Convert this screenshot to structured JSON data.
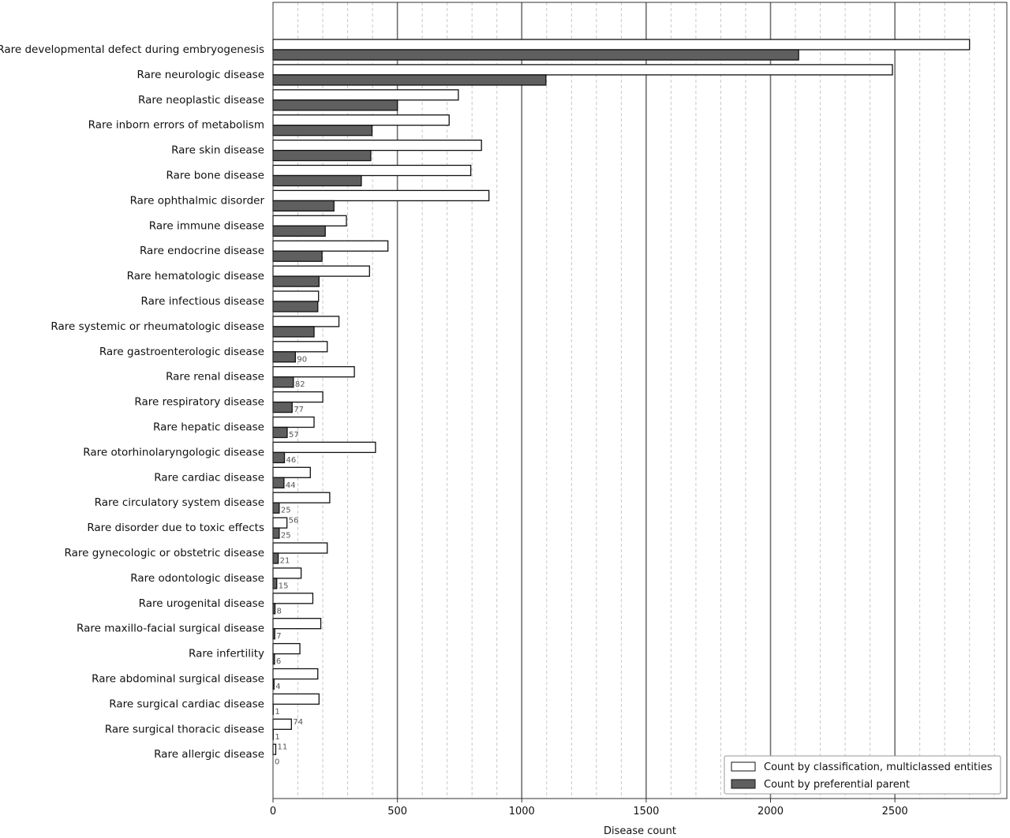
{
  "chart_data": {
    "type": "bar",
    "orientation": "horizontal",
    "categories": [
      "Rare developmental defect during embryogenesis",
      "Rare neurologic disease",
      "Rare neoplastic disease",
      "Rare inborn errors of metabolism",
      "Rare skin disease",
      "Rare bone disease",
      "Rare ophthalmic disorder",
      "Rare immune disease",
      "Rare endocrine disease",
      "Rare hematologic disease",
      "Rare infectious disease",
      "Rare systemic or rheumatologic disease",
      "Rare gastroenterologic disease",
      "Rare renal disease",
      "Rare respiratory disease",
      "Rare hepatic disease",
      "Rare otorhinolaryngologic disease",
      "Rare cardiac disease",
      "Rare circulatory system disease",
      "Rare disorder due to toxic effects",
      "Rare gynecologic or obstetric disease",
      "Rare odontologic disease",
      "Rare urogenital disease",
      "Rare maxillo-facial surgical disease",
      "Rare infertility",
      "Rare abdominal surgical disease",
      "Rare surgical cardiac disease",
      "Rare surgical thoracic disease",
      "Rare allergic disease"
    ],
    "series": [
      {
        "name": "Count by classification, multiclassed entities",
        "color": "#ffffff",
        "values": [
          2800,
          2490,
          745,
          708,
          838,
          795,
          868,
          295,
          462,
          388,
          183,
          265,
          218,
          327,
          200,
          165,
          412,
          150,
          228,
          56,
          218,
          113,
          160,
          192,
          108,
          180,
          185,
          74,
          11
        ]
      },
      {
        "name": "Count by preferential parent",
        "color": "#5f5f5f",
        "values": [
          2113,
          1097,
          500,
          398,
          393,
          355,
          245,
          210,
          197,
          185,
          180,
          165,
          90,
          82,
          77,
          57,
          46,
          44,
          25,
          25,
          21,
          15,
          8,
          7,
          6,
          4,
          1,
          1,
          0
        ]
      }
    ],
    "value_labels": [
      {
        "category": "Rare gastroenterologic disease",
        "series": "Count by preferential parent",
        "text": "90"
      },
      {
        "category": "Rare renal disease",
        "series": "Count by preferential parent",
        "text": "82"
      },
      {
        "category": "Rare respiratory disease",
        "series": "Count by preferential parent",
        "text": "77"
      },
      {
        "category": "Rare hepatic disease",
        "series": "Count by preferential parent",
        "text": "57"
      },
      {
        "category": "Rare otorhinolaryngologic disease",
        "series": "Count by preferential parent",
        "text": "46"
      },
      {
        "category": "Rare cardiac disease",
        "series": "Count by preferential parent",
        "text": "44"
      },
      {
        "category": "Rare circulatory system disease",
        "series": "Count by preferential parent",
        "text": "25"
      },
      {
        "category": "Rare disorder due to toxic effects",
        "series": "Count by classification, multiclassed entities",
        "text": "56"
      },
      {
        "category": "Rare disorder due to toxic effects",
        "series": "Count by preferential parent",
        "text": "25"
      },
      {
        "category": "Rare gynecologic or obstetric disease",
        "series": "Count by preferential parent",
        "text": "21"
      },
      {
        "category": "Rare odontologic disease",
        "series": "Count by preferential parent",
        "text": "15"
      },
      {
        "category": "Rare urogenital disease",
        "series": "Count by preferential parent",
        "text": "8"
      },
      {
        "category": "Rare maxillo-facial surgical disease",
        "series": "Count by preferential parent",
        "text": "7"
      },
      {
        "category": "Rare infertility",
        "series": "Count by preferential parent",
        "text": "6"
      },
      {
        "category": "Rare abdominal surgical disease",
        "series": "Count by preferential parent",
        "text": "4"
      },
      {
        "category": "Rare surgical cardiac disease",
        "series": "Count by preferential parent",
        "text": "1"
      },
      {
        "category": "Rare surgical thoracic disease",
        "series": "Count by classification, multiclassed entities",
        "text": "74"
      },
      {
        "category": "Rare surgical thoracic disease",
        "series": "Count by preferential parent",
        "text": "1"
      },
      {
        "category": "Rare allergic disease",
        "series": "Count by classification, multiclassed entities",
        "text": "11"
      },
      {
        "category": "Rare allergic disease",
        "series": "Count by preferential parent",
        "text": "0"
      }
    ],
    "x_ticks": [
      0,
      500,
      1000,
      1500,
      2000,
      2500
    ],
    "x_tick_labels": [
      "0",
      "500",
      "1000",
      "1500",
      "2000",
      "2500"
    ],
    "xlim": [
      0,
      2950
    ],
    "xlabel": "Disease count",
    "ylabel": "",
    "title": "",
    "grid": {
      "major_x": true,
      "minor_x": true,
      "minor_step": 100
    },
    "legend_position": "bottom-right",
    "colors": {
      "bar_edge": "#111111",
      "major_grid": "#6f6f6f",
      "minor_grid": "#c8c8c8",
      "axis": "#333333"
    }
  }
}
